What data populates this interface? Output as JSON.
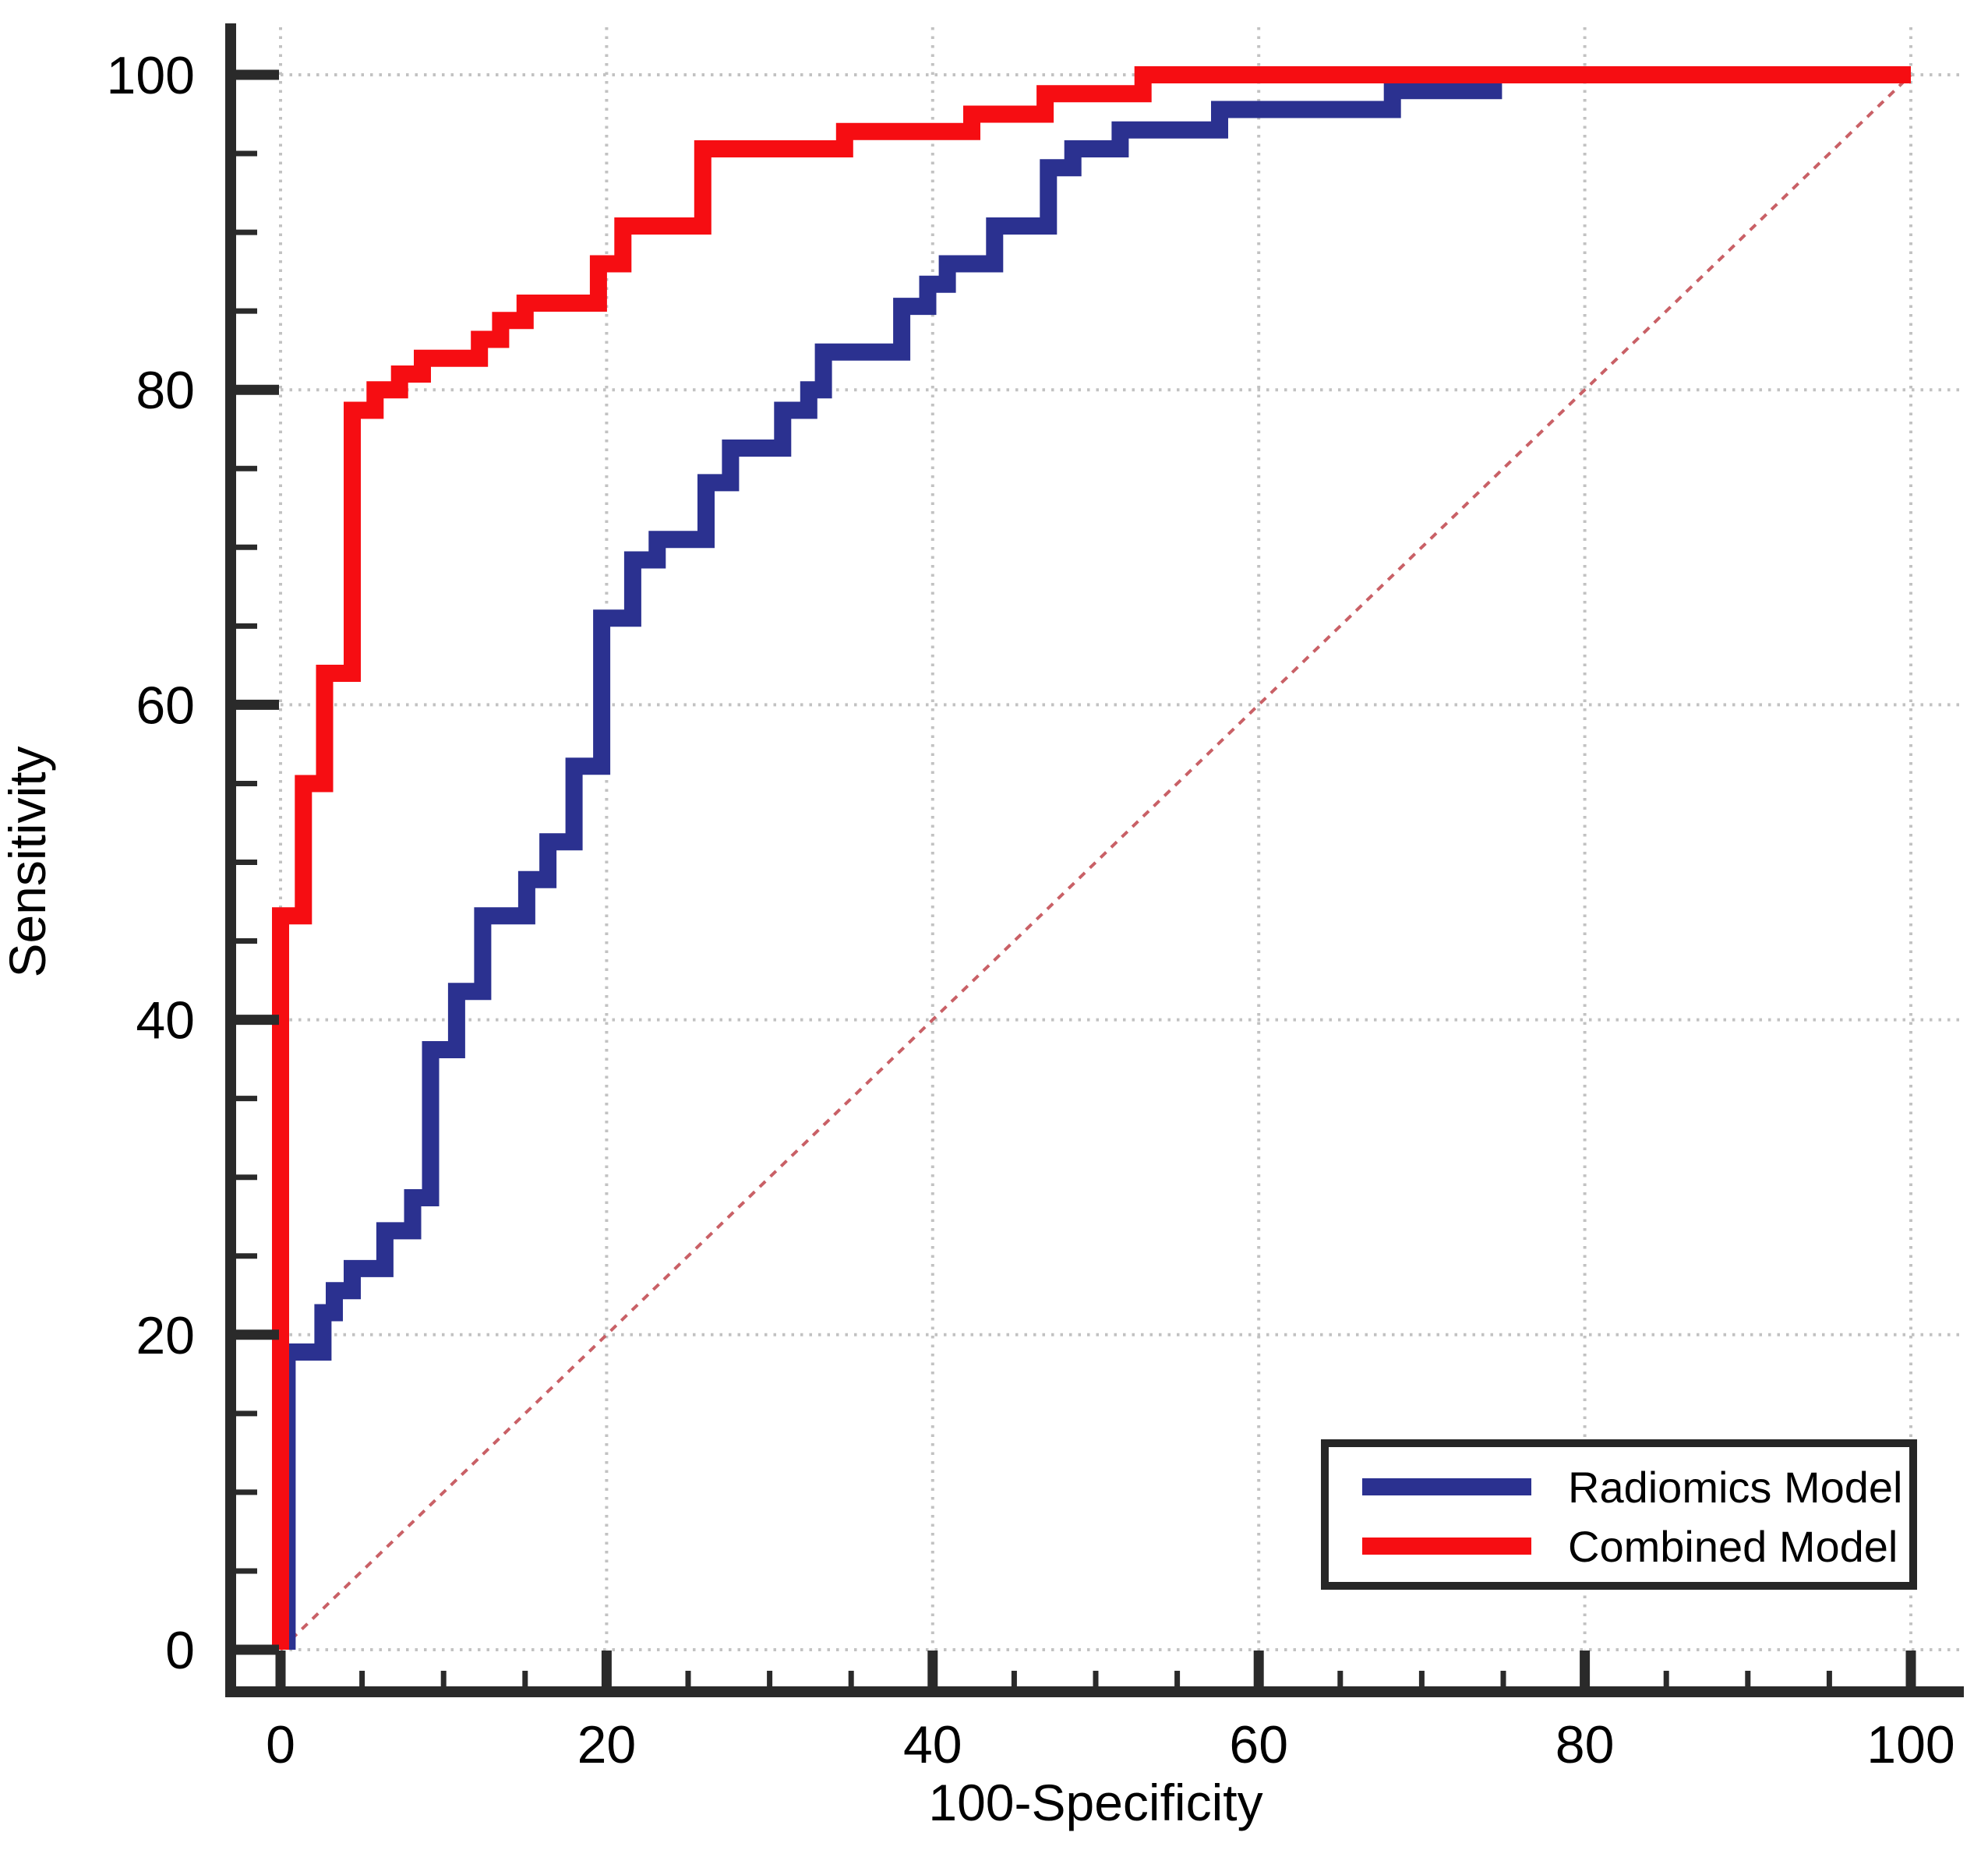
{
  "chart_data": {
    "type": "line",
    "subtype": "roc-step-curves",
    "title": "",
    "xlabel": "100-Specificity",
    "ylabel": "Sensitivity",
    "xlim": [
      0,
      100
    ],
    "ylim": [
      0,
      100
    ],
    "x_major_ticks": [
      0,
      20,
      40,
      60,
      80,
      100
    ],
    "y_major_ticks": [
      0,
      20,
      40,
      60,
      80,
      100
    ],
    "minor_tick_step": 5,
    "grid": true,
    "grid_style": "dotted",
    "legend_position": "bottom-right",
    "colors": {
      "radiomics_blue": "#2b3190",
      "combined_red": "#f60d12",
      "axis_dark": "#2a2a2a",
      "gridline_gray": "#c2c2c2",
      "diagonal_pink_red": "#c96066",
      "legend_border": "#262626",
      "background": "#ffffff",
      "text": "#000000"
    },
    "reference_line": {
      "name": "chance-diagonal",
      "from": [
        0,
        0
      ],
      "to": [
        100,
        100
      ],
      "style": "dashed",
      "color": "#c96066"
    },
    "legend": {
      "entries": [
        {
          "label": "Radiomics Model",
          "color": "#2b3190"
        },
        {
          "label": "Combined Model",
          "color": "#f60d12"
        }
      ]
    },
    "series": [
      {
        "name": "Radiomics Model",
        "color": "#2b3190",
        "points": [
          [
            0.4,
            0
          ],
          [
            0.4,
            18.9
          ],
          [
            2.6,
            18.9
          ],
          [
            2.6,
            21.4
          ],
          [
            3.3,
            21.4
          ],
          [
            3.3,
            22.8
          ],
          [
            4.4,
            22.8
          ],
          [
            4.4,
            24.2
          ],
          [
            6.4,
            24.2
          ],
          [
            6.4,
            26.6
          ],
          [
            8.1,
            26.6
          ],
          [
            8.1,
            28.7
          ],
          [
            9.2,
            28.7
          ],
          [
            9.2,
            38.1
          ],
          [
            10.8,
            38.1
          ],
          [
            10.8,
            41.8
          ],
          [
            12.4,
            41.8
          ],
          [
            12.4,
            46.6
          ],
          [
            15.1,
            46.6
          ],
          [
            15.1,
            48.9
          ],
          [
            16.4,
            48.9
          ],
          [
            16.4,
            51.3
          ],
          [
            18.0,
            51.3
          ],
          [
            18.0,
            56.1
          ],
          [
            19.7,
            56.1
          ],
          [
            19.7,
            65.5
          ],
          [
            21.6,
            65.5
          ],
          [
            21.6,
            69.2
          ],
          [
            23.1,
            69.2
          ],
          [
            23.1,
            70.5
          ],
          [
            26.1,
            70.5
          ],
          [
            26.1,
            74.1
          ],
          [
            27.6,
            74.1
          ],
          [
            27.6,
            76.3
          ],
          [
            30.8,
            76.3
          ],
          [
            30.8,
            78.7
          ],
          [
            32.4,
            78.7
          ],
          [
            32.4,
            80.0
          ],
          [
            33.3,
            80.0
          ],
          [
            33.3,
            82.4
          ],
          [
            38.1,
            82.4
          ],
          [
            38.1,
            85.3
          ],
          [
            39.7,
            85.3
          ],
          [
            39.7,
            86.7
          ],
          [
            40.9,
            86.7
          ],
          [
            40.9,
            88.0
          ],
          [
            43.8,
            88.0
          ],
          [
            43.8,
            90.4
          ],
          [
            47.1,
            90.4
          ],
          [
            47.1,
            94.1
          ],
          [
            48.6,
            94.1
          ],
          [
            48.6,
            95.3
          ],
          [
            51.5,
            95.3
          ],
          [
            51.5,
            96.5
          ],
          [
            57.6,
            96.5
          ],
          [
            57.6,
            97.8
          ],
          [
            68.2,
            97.8
          ],
          [
            68.2,
            99.0
          ],
          [
            74.4,
            99.0
          ],
          [
            74.4,
            100
          ],
          [
            100,
            100
          ]
        ]
      },
      {
        "name": "Combined Model",
        "color": "#f60d12",
        "points": [
          [
            0,
            0
          ],
          [
            0,
            46.6
          ],
          [
            1.4,
            46.6
          ],
          [
            1.4,
            55.0
          ],
          [
            2.7,
            55.0
          ],
          [
            2.7,
            62.0
          ],
          [
            4.4,
            62.0
          ],
          [
            4.4,
            78.7
          ],
          [
            5.8,
            78.7
          ],
          [
            5.8,
            80.0
          ],
          [
            7.3,
            80.0
          ],
          [
            7.3,
            81.0
          ],
          [
            8.7,
            81.0
          ],
          [
            8.7,
            82.0
          ],
          [
            12.2,
            82.0
          ],
          [
            12.2,
            83.2
          ],
          [
            13.5,
            83.2
          ],
          [
            13.5,
            84.4
          ],
          [
            15.0,
            84.4
          ],
          [
            15.0,
            85.5
          ],
          [
            19.5,
            85.5
          ],
          [
            19.5,
            88.0
          ],
          [
            21.0,
            88.0
          ],
          [
            21.0,
            90.4
          ],
          [
            25.9,
            90.4
          ],
          [
            25.9,
            95.3
          ],
          [
            34.6,
            95.3
          ],
          [
            34.6,
            96.4
          ],
          [
            42.4,
            96.4
          ],
          [
            42.4,
            97.5
          ],
          [
            46.9,
            97.5
          ],
          [
            46.9,
            98.8
          ],
          [
            52.9,
            98.8
          ],
          [
            52.9,
            100
          ],
          [
            100,
            100
          ]
        ]
      }
    ]
  }
}
